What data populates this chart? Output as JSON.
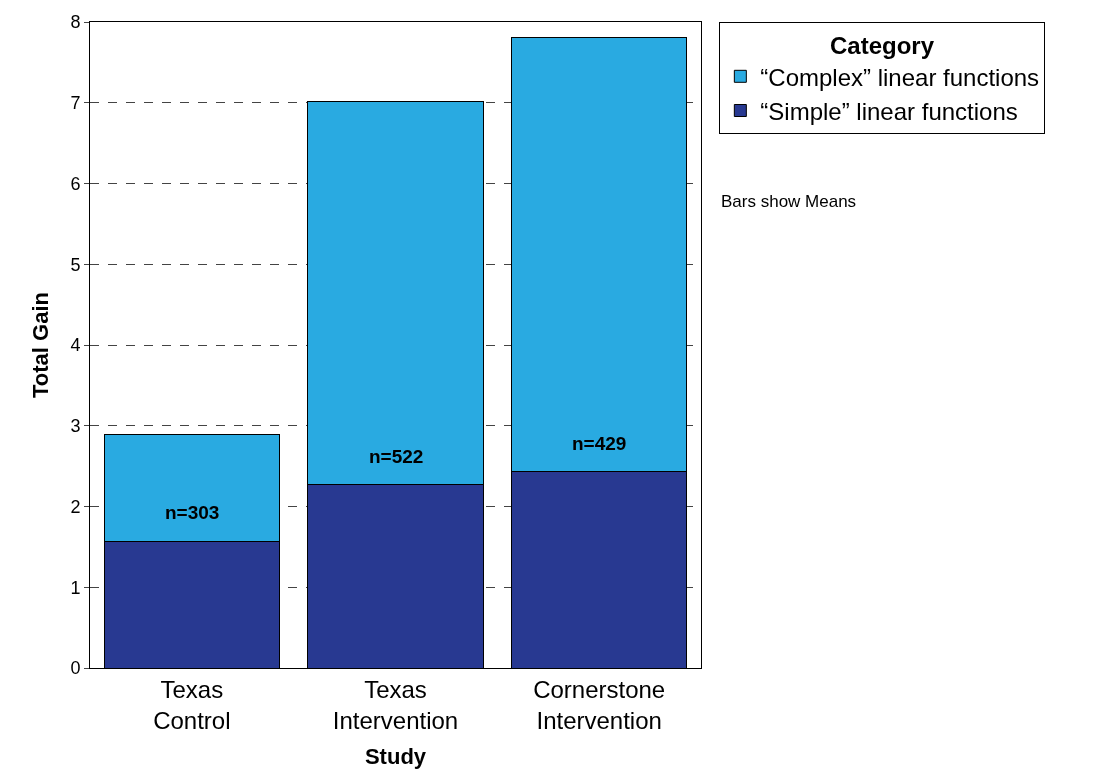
{
  "chart_data": {
    "type": "bar",
    "stacked": true,
    "xlabel": "Study",
    "ylabel": "Total Gain",
    "legend_title": "Category",
    "categories": [
      "Texas\nControl",
      "Texas\nIntervention",
      "Cornerstone\nIntervention"
    ],
    "series": [
      {
        "name": "“Simple” linear functions",
        "color": "#283991",
        "values": [
          1.57,
          2.27,
          2.43
        ]
      },
      {
        "name": "“Complex” linear functions",
        "color": "#29aae1",
        "values": [
          1.32,
          4.75,
          5.38
        ]
      }
    ],
    "ylim": [
      0,
      8
    ],
    "yticks": [
      0,
      1,
      2,
      3,
      4,
      5,
      6,
      7,
      8
    ],
    "grid": "y",
    "legend": "top right",
    "annotations": [
      "n=303",
      "n=522",
      "n=429",
      "Bars show Means"
    ]
  }
}
